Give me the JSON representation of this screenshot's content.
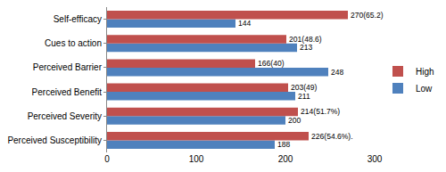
{
  "chart_data": {
    "type": "bar",
    "orientation": "horizontal",
    "categories": [
      "Perceived Susceptibility",
      "Perceived Severity",
      "Perceived Benefit",
      "Perceived Barrier",
      "Cues to action",
      "Self-efficacy"
    ],
    "series": [
      {
        "name": "High",
        "color": "#c0504d",
        "values": [
          226,
          214,
          203,
          166,
          201,
          270
        ],
        "value_labels": [
          "226(54.6%).",
          "214(51.7%)",
          "203(49)",
          "166(40)",
          "201(48.6)",
          "270(65.2)"
        ]
      },
      {
        "name": "Low",
        "color": "#4f81bd",
        "values": [
          188,
          200,
          211,
          248,
          213,
          144
        ]
      }
    ],
    "xlim": [
      0,
      300
    ],
    "xticks": [
      0,
      100,
      200,
      300
    ],
    "grid": false,
    "legend": "right",
    "data_labels": true
  }
}
